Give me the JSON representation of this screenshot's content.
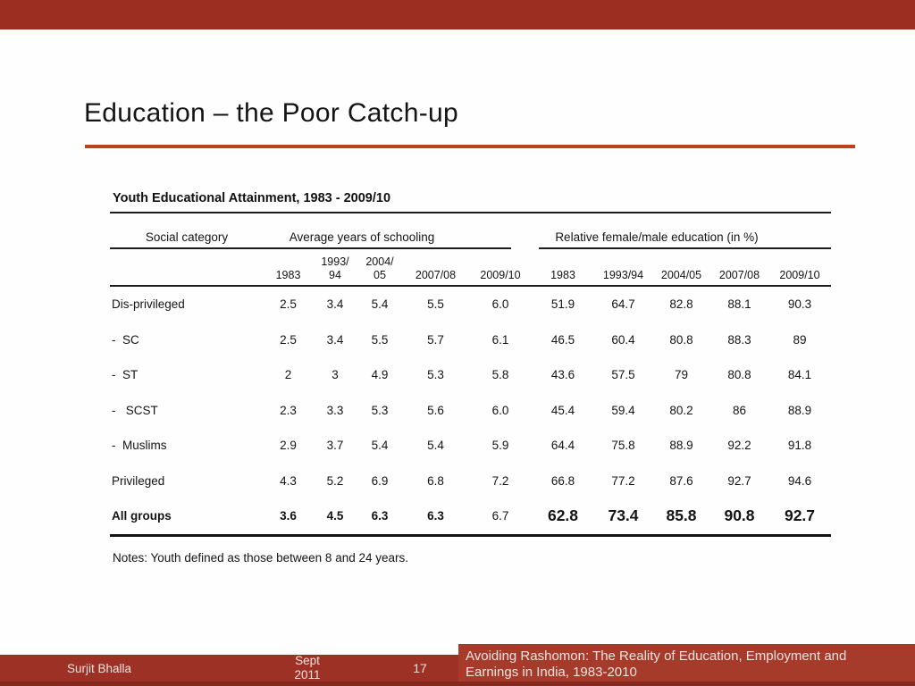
{
  "slide": {
    "title": "Education – the Poor Catch-up"
  },
  "colors": {
    "top_bar": "#9C2E21",
    "accent_rule": "#BC4318",
    "footer_left_bar": "#9E3126",
    "footer_right_box": "#A63A2B",
    "footer_bottom_strip": "#84271C"
  },
  "table": {
    "title": "Youth Educational Attainment, 1983 - 2009/10",
    "group_headers": {
      "category": "Social category",
      "left": "Average years of schooling",
      "right": "Relative female/male education (in %)"
    },
    "year_headers_left": [
      "1983",
      "1993/\n94",
      "2004/\n05",
      "2007/08",
      "2009/10"
    ],
    "year_headers_right": [
      "1983",
      "1993/94",
      "2004/05",
      "2007/08",
      "2009/10"
    ],
    "rows": [
      {
        "label": "Dis-privileged",
        "avg": [
          "2.5",
          "3.4",
          "5.4",
          "5.5",
          "6.0"
        ],
        "rel": [
          "51.9",
          "64.7",
          "82.8",
          "88.1",
          "90.3"
        ],
        "total": false
      },
      {
        "label": "-  SC",
        "avg": [
          "2.5",
          "3.4",
          "5.5",
          "5.7",
          "6.1"
        ],
        "rel": [
          "46.5",
          "60.4",
          "80.8",
          "88.3",
          "89"
        ],
        "total": false
      },
      {
        "label": "-  ST",
        "avg": [
          "2",
          "3",
          "4.9",
          "5.3",
          "5.8"
        ],
        "rel": [
          "43.6",
          "57.5",
          "79",
          "80.8",
          "84.1"
        ],
        "total": false
      },
      {
        "label": "-   SCST",
        "avg": [
          "2.3",
          "3.3",
          "5.3",
          "5.6",
          "6.0"
        ],
        "rel": [
          "45.4",
          "59.4",
          "80.2",
          "86",
          "88.9"
        ],
        "total": false
      },
      {
        "label": "-  Muslims",
        "avg": [
          "2.9",
          "3.7",
          "5.4",
          "5.4",
          "5.9"
        ],
        "rel": [
          "64.4",
          "75.8",
          "88.9",
          "92.2",
          "91.8"
        ],
        "total": false
      },
      {
        "label": "Privileged",
        "avg": [
          "4.3",
          "5.2",
          "6.9",
          "6.8",
          "7.2"
        ],
        "rel": [
          "66.8",
          "77.2",
          "87.6",
          "92.7",
          "94.6"
        ],
        "total": false
      },
      {
        "label": "All groups",
        "avg": [
          "3.6",
          "4.5",
          "6.3",
          "6.3",
          "6.7"
        ],
        "rel": [
          "62.8",
          "73.4",
          "85.8",
          "90.8",
          "92.7"
        ],
        "total": true
      }
    ],
    "notes": "Notes: Youth defined as those between 8 and 24 years."
  },
  "footer": {
    "author": "Surjit Bhalla",
    "date": "Sept\n2011",
    "page_number": "17",
    "deck_title": "Avoiding Rashomon: The Reality of Education, Employment and Earnings in India, 1983-2010"
  }
}
